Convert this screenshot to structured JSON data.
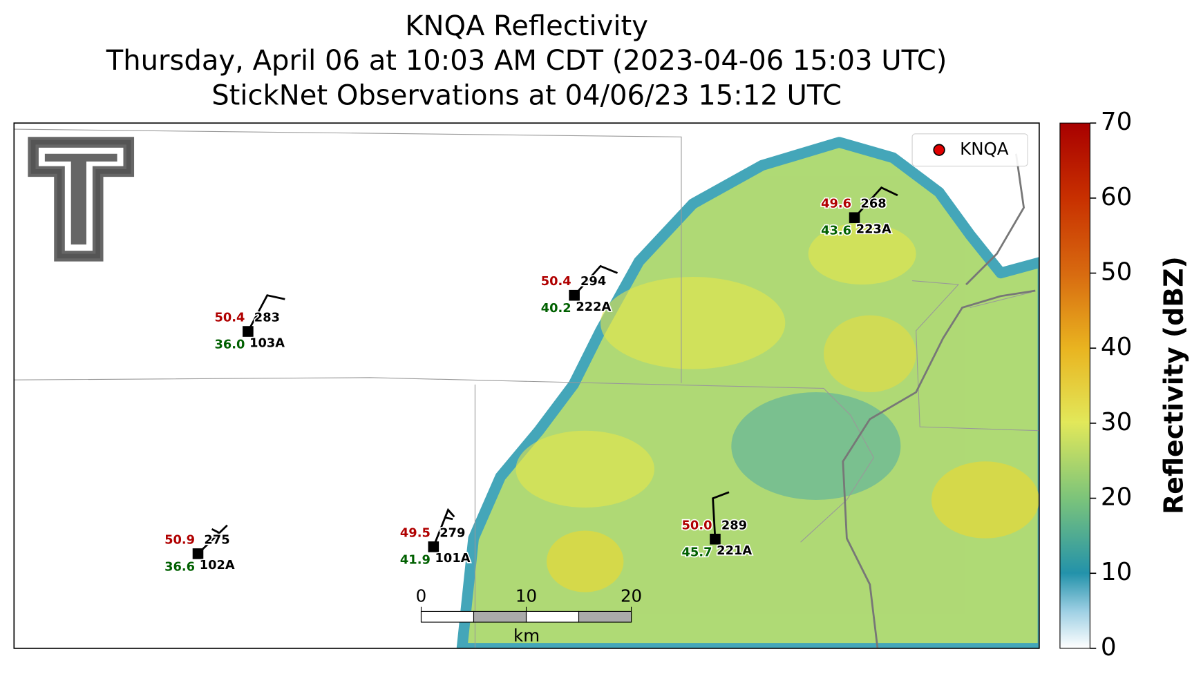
{
  "header": {
    "title": "KNQA Reflectivity",
    "subtitle": "Thursday, April 06 at 10:03 AM CDT (2023-04-06 15:03 UTC)",
    "observations": "StickNet Observations at 04/06/23 15:12 UTC"
  },
  "legend": {
    "label": "KNQA",
    "color": "#e00000"
  },
  "stations": [
    {
      "id": "103A",
      "temperature": "50.4",
      "dewpoint": "36.0",
      "direction": 283
    },
    {
      "id": "222A",
      "temperature": "50.4",
      "dewpoint": "40.2",
      "direction": 294
    },
    {
      "id": "223A",
      "temperature": "49.6",
      "dewpoint": "43.6",
      "direction": 268
    },
    {
      "id": "102A",
      "temperature": "50.9",
      "dewpoint": "36.6",
      "direction": 275
    },
    {
      "id": "101A",
      "temperature": "49.5",
      "dewpoint": "41.9",
      "direction": 279
    },
    {
      "id": "221A",
      "temperature": "50.0",
      "dewpoint": "45.7",
      "direction": 289
    }
  ],
  "colorbar": {
    "label": "Reflectivity (dBZ)",
    "lim": [
      0,
      70
    ],
    "ticks": [
      0,
      10,
      20,
      30,
      40,
      50,
      60,
      70
    ]
  },
  "scale_bar": {
    "ticks": [
      0,
      10,
      20
    ],
    "unit": "km"
  }
}
